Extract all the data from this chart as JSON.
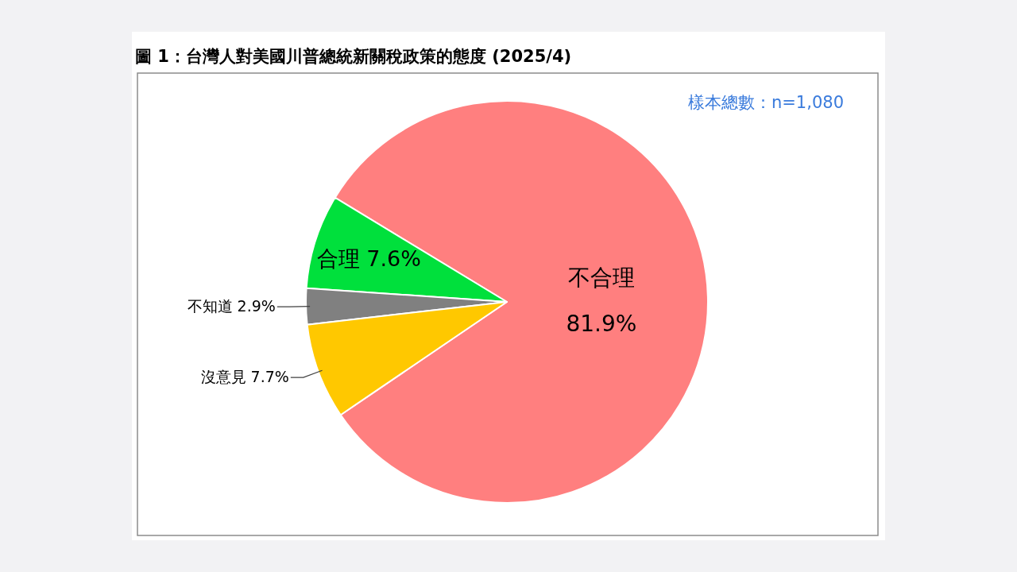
{
  "chart_data": {
    "type": "pie",
    "title": "圖 1：台灣人對美國川普總統新關稅政策的態度 (2025/4)",
    "categories": [
      "不合理",
      "合理",
      "不知道",
      "沒意見"
    ],
    "values": [
      81.9,
      7.6,
      2.9,
      7.7
    ],
    "colors": [
      "#ff7f7f",
      "#00e03c",
      "#808080",
      "#ffc800"
    ],
    "value_labels": [
      "81.9%",
      "7.6%",
      "2.9%",
      "7.7%"
    ],
    "annotations": [
      "樣本總數：n=1,080"
    ]
  }
}
